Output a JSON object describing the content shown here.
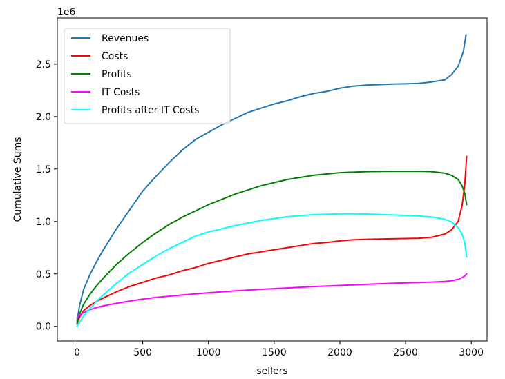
{
  "chart_data": {
    "type": "line",
    "title": "",
    "xlabel": "sellers",
    "ylabel": "Cumulative Sums",
    "y_offset_text": "1e6",
    "xlim": [
      -150,
      3120
    ],
    "ylim": [
      -140000,
      2940000
    ],
    "x_ticks": [
      0,
      500,
      1000,
      1500,
      2000,
      2500,
      3000
    ],
    "x_tick_labels": [
      "0",
      "500",
      "1000",
      "1500",
      "2000",
      "2500",
      "3000"
    ],
    "y_ticks": [
      0,
      500000,
      1000000,
      1500000,
      2000000,
      2500000
    ],
    "y_tick_labels": [
      "0.0",
      "0.5",
      "1.0",
      "1.5",
      "2.0",
      "2.5"
    ],
    "grid": false,
    "legend_position": "upper-left",
    "series": [
      {
        "name": "Revenues",
        "color": "#1f77b4",
        "x": [
          0,
          20,
          50,
          100,
          150,
          200,
          250,
          300,
          400,
          500,
          600,
          700,
          800,
          900,
          1000,
          1100,
          1200,
          1300,
          1400,
          1500,
          1600,
          1700,
          1800,
          1900,
          2000,
          2100,
          2200,
          2300,
          2400,
          2500,
          2600,
          2700,
          2800,
          2850,
          2900,
          2940,
          2960
        ],
        "y": [
          50000,
          200000,
          350000,
          500000,
          620000,
          730000,
          830000,
          930000,
          1110000,
          1290000,
          1430000,
          1560000,
          1680000,
          1780000,
          1850000,
          1920000,
          1980000,
          2040000,
          2080000,
          2120000,
          2150000,
          2190000,
          2220000,
          2240000,
          2270000,
          2290000,
          2300000,
          2305000,
          2310000,
          2312000,
          2316000,
          2330000,
          2350000,
          2400000,
          2480000,
          2620000,
          2780000
        ]
      },
      {
        "name": "Costs",
        "color": "#ff0000",
        "x": [
          0,
          20,
          50,
          100,
          150,
          200,
          250,
          300,
          400,
          500,
          600,
          700,
          800,
          900,
          1000,
          1100,
          1200,
          1300,
          1400,
          1500,
          1600,
          1700,
          1800,
          1900,
          2000,
          2100,
          2200,
          2300,
          2400,
          2500,
          2600,
          2700,
          2800,
          2850,
          2900,
          2930,
          2950,
          2965
        ],
        "y": [
          20000,
          90000,
          150000,
          200000,
          240000,
          270000,
          300000,
          330000,
          380000,
          420000,
          460000,
          490000,
          530000,
          560000,
          600000,
          630000,
          660000,
          690000,
          710000,
          730000,
          750000,
          770000,
          790000,
          800000,
          815000,
          825000,
          830000,
          833000,
          835000,
          837000,
          840000,
          850000,
          880000,
          920000,
          1000000,
          1150000,
          1350000,
          1620000
        ]
      },
      {
        "name": "Profits",
        "color": "#008000",
        "x": [
          0,
          20,
          50,
          100,
          150,
          200,
          300,
          400,
          500,
          600,
          700,
          800,
          900,
          1000,
          1200,
          1400,
          1600,
          1800,
          2000,
          2200,
          2400,
          2600,
          2700,
          2800,
          2850,
          2900,
          2930,
          2950,
          2965
        ],
        "y": [
          30000,
          120000,
          210000,
          310000,
          390000,
          460000,
          590000,
          700000,
          800000,
          890000,
          970000,
          1040000,
          1100000,
          1160000,
          1260000,
          1340000,
          1400000,
          1440000,
          1465000,
          1475000,
          1478000,
          1478000,
          1475000,
          1460000,
          1440000,
          1400000,
          1340000,
          1270000,
          1160000
        ]
      },
      {
        "name": "IT Costs",
        "color": "#ff00ff",
        "x": [
          0,
          20,
          50,
          100,
          150,
          200,
          300,
          400,
          500,
          600,
          700,
          800,
          900,
          1000,
          1200,
          1400,
          1600,
          1800,
          2000,
          2200,
          2400,
          2600,
          2700,
          2800,
          2850,
          2900,
          2930,
          2950,
          2965
        ],
        "y": [
          80000,
          110000,
          130000,
          160000,
          180000,
          195000,
          220000,
          240000,
          260000,
          275000,
          287000,
          298000,
          309000,
          320000,
          338000,
          353000,
          366000,
          379000,
          390000,
          400000,
          410000,
          418000,
          422000,
          428000,
          435000,
          448000,
          465000,
          480000,
          500000
        ]
      },
      {
        "name": "Profits after IT Costs",
        "color": "#00ffff",
        "x": [
          0,
          20,
          50,
          100,
          150,
          200,
          300,
          400,
          500,
          600,
          700,
          800,
          900,
          1000,
          1200,
          1400,
          1600,
          1800,
          2000,
          2100,
          2200,
          2400,
          2600,
          2700,
          2800,
          2850,
          2900,
          2930,
          2950,
          2965
        ],
        "y": [
          0,
          40000,
          100000,
          170000,
          240000,
          300000,
          410000,
          510000,
          590000,
          670000,
          740000,
          800000,
          860000,
          900000,
          960000,
          1010000,
          1045000,
          1065000,
          1072000,
          1073000,
          1071000,
          1063000,
          1052000,
          1043000,
          1020000,
          995000,
          940000,
          880000,
          800000,
          660000
        ]
      }
    ]
  }
}
